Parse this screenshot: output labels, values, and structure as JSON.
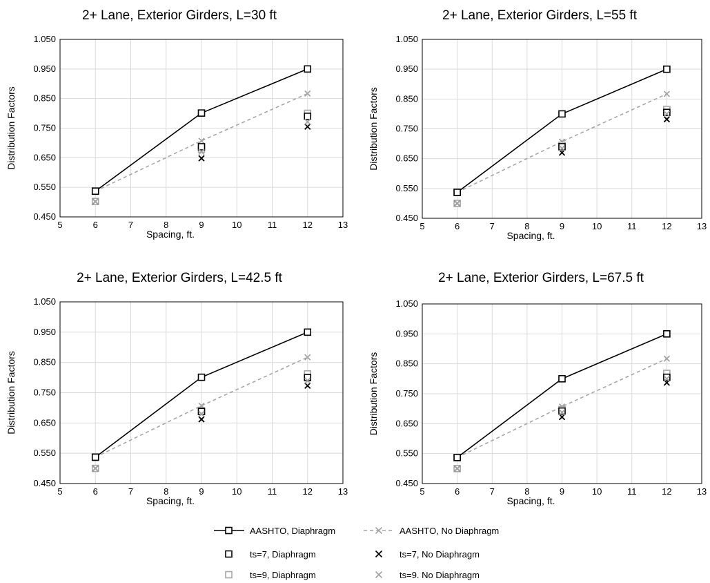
{
  "legend": {
    "aashto_diaphragm": "AASHTO, Diaphragm",
    "aashto_no_diaphragm": "AASHTO, No Diaphragm",
    "ts7_diaphragm": "ts=7, Diaphragm",
    "ts7_no_diaphragm": "ts=7, No Diaphragm",
    "ts9_diaphragm": "ts=9, Diaphragm",
    "ts9_no_diaphragm": "ts=9. No Diaphragm"
  },
  "colors": {
    "aashto_diaphragm": "#000000",
    "aashto_no_diaphragm": "#a6a6a6",
    "ts7": "#000000",
    "ts9": "#a6a6a6",
    "grid": "#d9d9d9"
  },
  "chart_data": [
    {
      "type": "scatter",
      "title": "2+ Lane, Exterior Girders, L=30 ft",
      "xlabel": "Spacing, ft.",
      "ylabel": "Distribution Factors",
      "xlim": [
        5,
        13
      ],
      "ylim": [
        0.45,
        1.05
      ],
      "x_ticks": [
        "5",
        "6",
        "7",
        "8",
        "9",
        "10",
        "11",
        "12",
        "13"
      ],
      "y_ticks": [
        "0.450",
        "0.550",
        "0.650",
        "0.750",
        "0.850",
        "0.950",
        "1.050"
      ],
      "grid": true,
      "series": [
        {
          "name": "AASHTO, Diaphragm",
          "x": [
            6,
            9,
            12
          ],
          "y": [
            0.537,
            0.801,
            0.95
          ]
        },
        {
          "name": "AASHTO, No Diaphragm",
          "x": [
            6,
            9,
            12
          ],
          "y": [
            0.537,
            0.707,
            0.867
          ]
        },
        {
          "name": "ts=7, Diaphragm",
          "x": [
            6,
            9,
            12
          ],
          "y": [
            0.537,
            0.687,
            0.79
          ]
        },
        {
          "name": "ts=7, No Diaphragm",
          "x": [
            6,
            9,
            12
          ],
          "y": [
            0.502,
            0.648,
            0.755
          ]
        },
        {
          "name": "ts=9, Diaphragm",
          "x": [
            6,
            9,
            12
          ],
          "y": [
            0.502,
            0.679,
            0.8
          ]
        },
        {
          "name": "ts=9. No Diaphragm",
          "x": [
            6,
            9,
            12
          ],
          "y": [
            0.502,
            0.67,
            0.772
          ]
        }
      ]
    },
    {
      "type": "scatter",
      "title": "2+ Lane, Exterior Girders, L=55 ft",
      "xlabel": "Spacing, ft.",
      "ylabel": "Distribution Factors",
      "xlim": [
        5,
        13
      ],
      "ylim": [
        0.45,
        1.05
      ],
      "x_ticks": [
        "5",
        "6",
        "7",
        "8",
        "9",
        "10",
        "11",
        "12",
        "13"
      ],
      "y_ticks": [
        "0.450",
        "0.550",
        "0.650",
        "0.750",
        "0.850",
        "0.950",
        "1.050"
      ],
      "grid": true,
      "series": [
        {
          "name": "AASHTO, Diaphragm",
          "x": [
            6,
            9,
            12
          ],
          "y": [
            0.537,
            0.8,
            0.95
          ]
        },
        {
          "name": "AASHTO, No Diaphragm",
          "x": [
            6,
            9,
            12
          ],
          "y": [
            0.537,
            0.707,
            0.867
          ]
        },
        {
          "name": "ts=7, Diaphragm",
          "x": [
            6,
            9,
            12
          ],
          "y": [
            0.537,
            0.69,
            0.805
          ]
        },
        {
          "name": "ts=7, No Diaphragm",
          "x": [
            6,
            9,
            12
          ],
          "y": [
            0.5,
            0.67,
            0.782
          ]
        },
        {
          "name": "ts=9, Diaphragm",
          "x": [
            6,
            9,
            12
          ],
          "y": [
            0.5,
            0.695,
            0.815
          ]
        },
        {
          "name": "ts=9. No Diaphragm",
          "x": [
            6,
            9,
            12
          ],
          "y": [
            0.5,
            0.685,
            0.8
          ]
        }
      ]
    },
    {
      "type": "scatter",
      "title": "2+ Lane, Exterior Girders, L=42.5 ft",
      "xlabel": "Spacing, ft.",
      "ylabel": "Distribution Factors",
      "xlim": [
        5,
        13
      ],
      "ylim": [
        0.45,
        1.05
      ],
      "x_ticks": [
        "5",
        "6",
        "7",
        "8",
        "9",
        "10",
        "11",
        "12",
        "13"
      ],
      "y_ticks": [
        "0.450",
        "0.550",
        "0.650",
        "0.750",
        "0.850",
        "0.950",
        "1.050"
      ],
      "grid": true,
      "series": [
        {
          "name": "AASHTO, Diaphragm",
          "x": [
            6,
            9,
            12
          ],
          "y": [
            0.537,
            0.801,
            0.95
          ]
        },
        {
          "name": "AASHTO, No Diaphragm",
          "x": [
            6,
            9,
            12
          ],
          "y": [
            0.537,
            0.707,
            0.867
          ]
        },
        {
          "name": "ts=7, Diaphragm",
          "x": [
            6,
            9,
            12
          ],
          "y": [
            0.537,
            0.688,
            0.8
          ]
        },
        {
          "name": "ts=7, No Diaphragm",
          "x": [
            6,
            9,
            12
          ],
          "y": [
            0.5,
            0.662,
            0.773
          ]
        },
        {
          "name": "ts=9, Diaphragm",
          "x": [
            6,
            9,
            12
          ],
          "y": [
            0.5,
            0.69,
            0.812
          ]
        },
        {
          "name": "ts=9. No Diaphragm",
          "x": [
            6,
            9,
            12
          ],
          "y": [
            0.5,
            0.68,
            0.79
          ]
        }
      ]
    },
    {
      "type": "scatter",
      "title": "2+ Lane, Exterior Girders, L=67.5 ft",
      "xlabel": "Spacing, ft.",
      "ylabel": "Distribution Factors",
      "xlim": [
        5,
        13
      ],
      "ylim": [
        0.45,
        1.05
      ],
      "x_ticks": [
        "5",
        "6",
        "7",
        "8",
        "9",
        "10",
        "11",
        "12",
        "13"
      ],
      "y_ticks": [
        "0.450",
        "0.550",
        "0.650",
        "0.750",
        "0.850",
        "0.950",
        "1.050"
      ],
      "grid": true,
      "series": [
        {
          "name": "AASHTO, Diaphragm",
          "x": [
            6,
            9,
            12
          ],
          "y": [
            0.537,
            0.8,
            0.95
          ]
        },
        {
          "name": "AASHTO, No Diaphragm",
          "x": [
            6,
            9,
            12
          ],
          "y": [
            0.537,
            0.707,
            0.867
          ]
        },
        {
          "name": "ts=7, Diaphragm",
          "x": [
            6,
            9,
            12
          ],
          "y": [
            0.537,
            0.692,
            0.805
          ]
        },
        {
          "name": "ts=7, No Diaphragm",
          "x": [
            6,
            9,
            12
          ],
          "y": [
            0.5,
            0.672,
            0.787
          ]
        },
        {
          "name": "ts=9, Diaphragm",
          "x": [
            6,
            9,
            12
          ],
          "y": [
            0.5,
            0.697,
            0.818
          ]
        },
        {
          "name": "ts=9. No Diaphragm",
          "x": [
            6,
            9,
            12
          ],
          "y": [
            0.5,
            0.688,
            0.8
          ]
        }
      ]
    }
  ]
}
